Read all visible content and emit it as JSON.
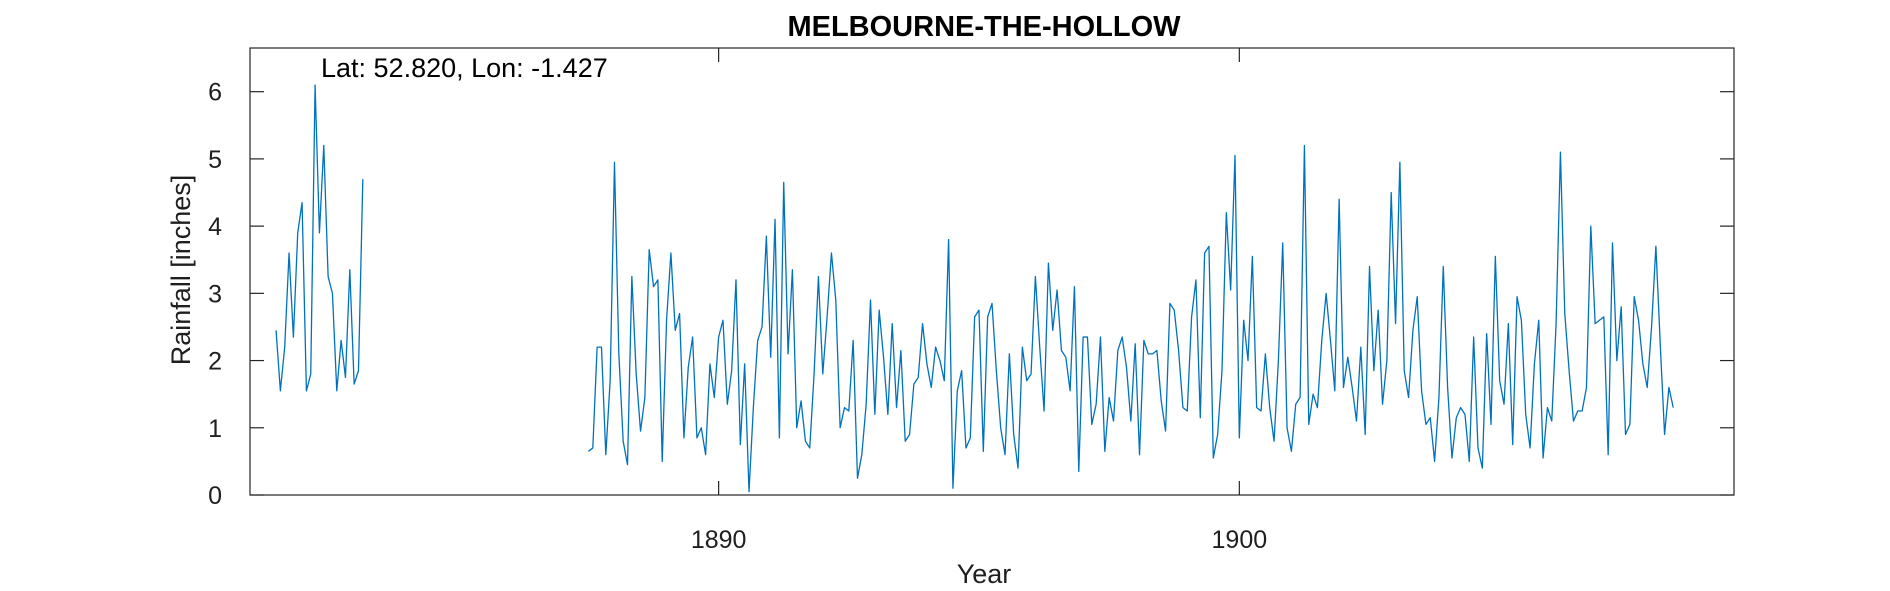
{
  "chart_data": {
    "type": "line",
    "title": "MELBOURNE-THE-HOLLOW",
    "xlabel": "Year",
    "ylabel": "Rainfall [inches]",
    "annotation": "Lat: 52.820, Lon: -1.427",
    "xlim": [
      1881.0,
      1909.5
    ],
    "ylim": [
      0,
      6.65
    ],
    "x_ticks": [
      1890,
      1900
    ],
    "x_tick_labels": [
      "1890",
      "1900"
    ],
    "y_ticks": [
      0,
      1,
      2,
      3,
      4,
      5,
      6
    ],
    "y_tick_labels": [
      "0",
      "1",
      "2",
      "3",
      "4",
      "5",
      "6"
    ],
    "grid": false,
    "series_color": "#0072BD",
    "segments": [
      {
        "x_start": 1881.5,
        "x_step": 0.0833333,
        "values": [
          2.45,
          1.55,
          2.2,
          3.6,
          2.35,
          3.9,
          4.35,
          1.55,
          1.8,
          6.1,
          3.9,
          5.2,
          3.25,
          3.0,
          1.55,
          2.3,
          1.75,
          3.35,
          1.65,
          1.85,
          4.7
        ]
      },
      {
        "x_start": 1887.5,
        "x_step": 0.0833333,
        "values": [
          0.65,
          0.7,
          2.2,
          2.2,
          0.6,
          1.7,
          4.95,
          2.1,
          0.8,
          0.45,
          3.25,
          1.8,
          0.95,
          1.45,
          3.65,
          3.1,
          3.2,
          0.5,
          2.6,
          3.6,
          2.45,
          2.7,
          0.85,
          1.9,
          2.35,
          0.85,
          1.0,
          0.6,
          1.95,
          1.45,
          2.35,
          2.6,
          1.35,
          1.85,
          3.2,
          0.75,
          1.95,
          0.05,
          1.3,
          2.3,
          2.5,
          3.85,
          2.05,
          4.1,
          0.85,
          4.65,
          2.1,
          3.35,
          1.0,
          1.4,
          0.8,
          0.7,
          1.8,
          3.25,
          1.8,
          2.65,
          3.6,
          2.9,
          1.0,
          1.3,
          1.25,
          2.3,
          0.25,
          0.6,
          1.35,
          2.9,
          1.2,
          2.75,
          2.05,
          1.2,
          2.55,
          1.3,
          2.15,
          0.8,
          0.9,
          1.65,
          1.75,
          2.55,
          1.95,
          1.6,
          2.2,
          2.0,
          1.7,
          3.8,
          0.1,
          1.55,
          1.85,
          0.7,
          0.85,
          2.65,
          2.75,
          0.65,
          2.65,
          2.85,
          1.85,
          1.0,
          0.6,
          2.1,
          0.9,
          0.4,
          2.2,
          1.7,
          1.8,
          3.25,
          2.2,
          1.25,
          3.45,
          2.45,
          3.05,
          2.15,
          2.05,
          1.55,
          3.1,
          0.35,
          2.35,
          2.35,
          1.05,
          1.35,
          2.35,
          0.65,
          1.45,
          1.1,
          2.15,
          2.35,
          1.9,
          1.1,
          2.25,
          0.6,
          2.3,
          2.1,
          2.1,
          2.15,
          1.4,
          0.95,
          2.85,
          2.75,
          2.15,
          1.3,
          1.25,
          2.65,
          3.2,
          1.15,
          3.6,
          3.7,
          0.55,
          0.9,
          1.85,
          4.2,
          3.05,
          5.05,
          0.85,
          2.6,
          2.0,
          3.55,
          1.3,
          1.25,
          2.1,
          1.3,
          0.8,
          2.0,
          3.75,
          1.0,
          0.65,
          1.35,
          1.45,
          5.2,
          1.05,
          1.5,
          1.3,
          2.3,
          3.0,
          2.3,
          1.55,
          4.4,
          1.6,
          2.05,
          1.6,
          1.1,
          2.2,
          0.9,
          3.4,
          1.85,
          2.75,
          1.35,
          2.0,
          4.5,
          2.55,
          4.95,
          1.85,
          1.45,
          2.45,
          2.95,
          1.55,
          1.05,
          1.15,
          0.5,
          1.45,
          3.4,
          1.6,
          0.55,
          1.15,
          1.3,
          1.2,
          0.5,
          2.35,
          0.7,
          0.4,
          2.4,
          1.05,
          3.55,
          1.7,
          1.35,
          2.55,
          0.75,
          2.95,
          2.6,
          1.2,
          0.7,
          1.95,
          2.6,
          0.55,
          1.3,
          1.1,
          2.55,
          5.1,
          2.7,
          1.85,
          1.1,
          1.25,
          1.25,
          1.6,
          4.0,
          2.55,
          2.6,
          2.65,
          0.6,
          3.75,
          2.0,
          2.8,
          0.9,
          1.05,
          2.95,
          2.6,
          1.95,
          1.6,
          2.5,
          3.7,
          2.25,
          0.9,
          1.6,
          1.3
        ]
      }
    ]
  }
}
